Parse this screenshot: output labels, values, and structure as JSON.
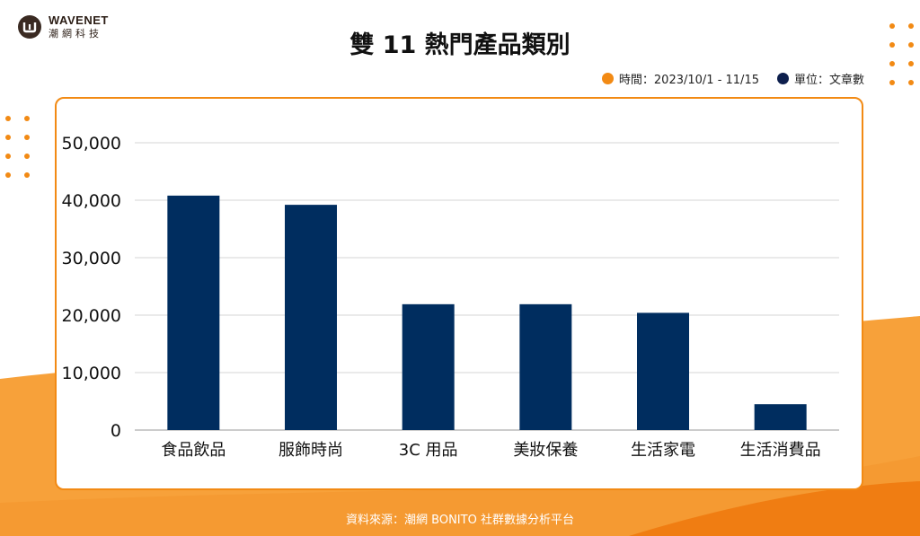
{
  "brand": {
    "name": "WAVENET",
    "subtitle": "潮網科技"
  },
  "title": "雙 11 熱門產品類別",
  "legend": [
    {
      "text": "時間：2023/10/1 - 11/15",
      "color": "#f28a14"
    },
    {
      "text": "單位：文章數",
      "color": "#0d1f4d"
    }
  ],
  "footer": "資料來源：潮網 BONITO 社群數據分析平台",
  "colors": {
    "accent": "#f28a14",
    "bar": "#002d5f",
    "text": "#111111"
  },
  "chart_data": {
    "type": "bar",
    "categories": [
      "食品飲品",
      "服飾時尚",
      "3C 用品",
      "美妝保養",
      "生活家電",
      "生活消費品"
    ],
    "values": [
      40800,
      39200,
      21900,
      21900,
      20400,
      4500
    ],
    "ylim": [
      0,
      50000
    ],
    "yticks": [
      0,
      10000,
      20000,
      30000,
      40000,
      50000
    ],
    "ytick_labels": [
      "0",
      "10,000",
      "20,000",
      "30,000",
      "40,000",
      "50,000"
    ],
    "grid": true
  }
}
